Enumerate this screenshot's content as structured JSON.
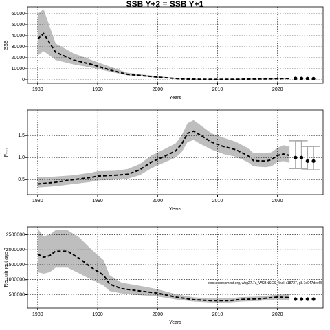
{
  "title": "SSB Y+2 = SSB Y+1",
  "chart_data": [
    {
      "type": "line",
      "ylabel": "SSB",
      "xlabel": "Years",
      "xlim": [
        1978.3,
        2027.6
      ],
      "xticks": [
        1980,
        1990,
        2000,
        2010,
        2020
      ],
      "ylim": [
        -3125,
        66250
      ],
      "yticks": [
        0,
        10000,
        20000,
        30000,
        40000,
        50000,
        60000
      ],
      "grid": true,
      "x": [
        1980,
        1981,
        1983,
        1986,
        1989,
        1992,
        1995,
        1998,
        2001,
        2004,
        2007,
        2010,
        2013,
        2016,
        2019,
        2022
      ],
      "values": [
        37000,
        42000,
        25000,
        18000,
        14000,
        9000,
        5000,
        3500,
        2000,
        800,
        500,
        400,
        500,
        700,
        900,
        1200
      ],
      "upper": [
        60000,
        64000,
        33000,
        24000,
        18000,
        12000,
        6500,
        4500,
        2700,
        1100,
        700,
        600,
        700,
        900,
        1200,
        1800
      ],
      "lower": [
        22000,
        26000,
        18000,
        14000,
        11000,
        7500,
        4000,
        2800,
        1500,
        600,
        350,
        300,
        350,
        500,
        650,
        800
      ],
      "color": "#000000",
      "band_color": "#bebebe",
      "forecast": {
        "x": [
          2023,
          2024,
          2025,
          2026
        ],
        "values": [
          1300,
          1200,
          1100,
          1000
        ]
      }
    },
    {
      "type": "line",
      "ylabel": "F₂₋₃",
      "xlabel": "Years",
      "xlim": [
        1978.3,
        2027.6
      ],
      "xticks": [
        1980,
        1990,
        2000,
        2010,
        2020
      ],
      "ylim": [
        0.16,
        2.08
      ],
      "yticks": [
        0.5,
        {
          "value": 1,
          "label": "1.0"
        },
        1.5
      ],
      "grid": true,
      "x": [
        1980,
        1983,
        1986,
        1989,
        1990,
        1993,
        1995,
        1997,
        1999,
        2001,
        2003,
        2004,
        2005,
        2006,
        2007,
        2009,
        2011,
        2013,
        2015,
        2016,
        2018,
        2019,
        2020,
        2021,
        2022
      ],
      "values": [
        0.4,
        0.44,
        0.5,
        0.55,
        0.58,
        0.6,
        0.62,
        0.72,
        0.9,
        1.02,
        1.15,
        1.3,
        1.55,
        1.6,
        1.52,
        1.35,
        1.25,
        1.18,
        1.05,
        0.93,
        0.92,
        0.95,
        1.05,
        1.08,
        1.05
      ],
      "upper": [
        0.55,
        0.57,
        0.6,
        0.66,
        0.69,
        0.7,
        0.74,
        0.85,
        1.05,
        1.18,
        1.32,
        1.5,
        1.78,
        1.85,
        1.75,
        1.55,
        1.45,
        1.36,
        1.22,
        1.1,
        1.1,
        1.12,
        1.22,
        1.28,
        1.25
      ],
      "lower": [
        0.32,
        0.35,
        0.4,
        0.45,
        0.48,
        0.5,
        0.52,
        0.6,
        0.76,
        0.88,
        1.0,
        1.12,
        1.35,
        1.4,
        1.32,
        1.18,
        1.08,
        1.02,
        0.9,
        0.8,
        0.78,
        0.8,
        0.9,
        0.92,
        0.88
      ],
      "color": "#000000",
      "band_color": "#bebebe",
      "forecast": {
        "x": [
          2023,
          2024,
          2025,
          2026
        ],
        "values": [
          1.0,
          1.0,
          0.92,
          0.92
        ],
        "upper": [
          1.38,
          1.38,
          1.25,
          1.25
        ],
        "lower": [
          0.75,
          0.75,
          0.72,
          0.72
        ],
        "error_color": "#a9a9a9"
      }
    },
    {
      "type": "line",
      "ylabel": "Recruitment age 0",
      "xlabel": "Years",
      "xlim": [
        1978.3,
        2027.6
      ],
      "xticks": [
        1980,
        1990,
        2000,
        2010,
        2020
      ],
      "ylim": [
        52000,
        2762000
      ],
      "yticks": [
        500000,
        1000000,
        1500000,
        2000000,
        2500000
      ],
      "grid": true,
      "annotation": "stockassessment.org, whg27.7a_WKBNSCS_final, r18727, g8.7e047dec65",
      "x": [
        1980,
        1981,
        1982,
        1983,
        1985,
        1987,
        1989,
        1991,
        1992,
        1994,
        1996,
        1998,
        2000,
        2003,
        2006,
        2009,
        2012,
        2014,
        2017,
        2020,
        2022
      ],
      "values": [
        1850000,
        1750000,
        1800000,
        1950000,
        1950000,
        1700000,
        1400000,
        1150000,
        850000,
        700000,
        650000,
        600000,
        550000,
        420000,
        330000,
        300000,
        300000,
        340000,
        360000,
        420000,
        400000
      ],
      "upper": [
        2700000,
        2450000,
        2500000,
        2650000,
        2650000,
        2400000,
        2000000,
        1650000,
        1150000,
        900000,
        830000,
        760000,
        680000,
        520000,
        410000,
        380000,
        380000,
        420000,
        440000,
        500000,
        520000
      ],
      "lower": [
        1250000,
        1200000,
        1250000,
        1400000,
        1400000,
        1200000,
        1000000,
        800000,
        620000,
        540000,
        500000,
        470000,
        440000,
        340000,
        270000,
        240000,
        240000,
        270000,
        290000,
        340000,
        300000
      ],
      "color": "#000000",
      "band_color": "#bebebe",
      "forecast": {
        "x": [
          2023,
          2024,
          2025,
          2026
        ],
        "values": [
          350000,
          350000,
          350000,
          350000
        ]
      }
    }
  ]
}
